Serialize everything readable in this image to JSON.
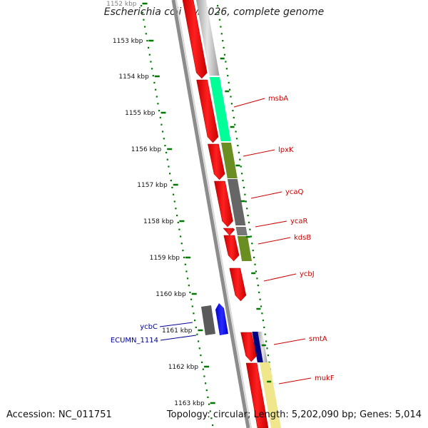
{
  "title": "Escherichia coli UMN026, complete genome",
  "footer": {
    "accession": "Accession: NC_011751",
    "summary": "Topology: circular; Length: 5,202,090 bp; Genes: 5,014"
  },
  "colors": {
    "backbone": "#808080",
    "forward_cds": "#ff0000",
    "reverse_cds": "#0000ff",
    "forward_label": "#cc0000",
    "reverse_label": "#000099",
    "tick": "#007700",
    "dots": "#007700"
  },
  "kbp_ticks": [
    "1152 kbp",
    "1153 kbp",
    "1154 kbp",
    "1155 kbp",
    "1156 kbp",
    "1157 kbp",
    "1158 kbp",
    "1159 kbp",
    "1160 kbp",
    "1161 kbp",
    "1162 kbp",
    "1163 kbp"
  ],
  "genes_forward": [
    {
      "name": "msbA",
      "cog_color": "#00ff99"
    },
    {
      "name": "lpxK",
      "cog_color": "#6b8e23"
    },
    {
      "name": "ycaQ",
      "cog_color": "#666666"
    },
    {
      "name": "ycaR",
      "cog_color": "#777777"
    },
    {
      "name": "kdsB",
      "cog_color": "#6b8e23"
    },
    {
      "name": "ycbJ",
      "cog_color": ""
    },
    {
      "name": "smtA",
      "cog_color": "#000080"
    },
    {
      "name": "mukF",
      "cog_color": "#f0e68c"
    }
  ],
  "genes_reverse": [
    {
      "name": "ycbC",
      "cog_color": "#666666"
    },
    {
      "name": "ECUMN_1114",
      "cog_color": ""
    }
  ]
}
